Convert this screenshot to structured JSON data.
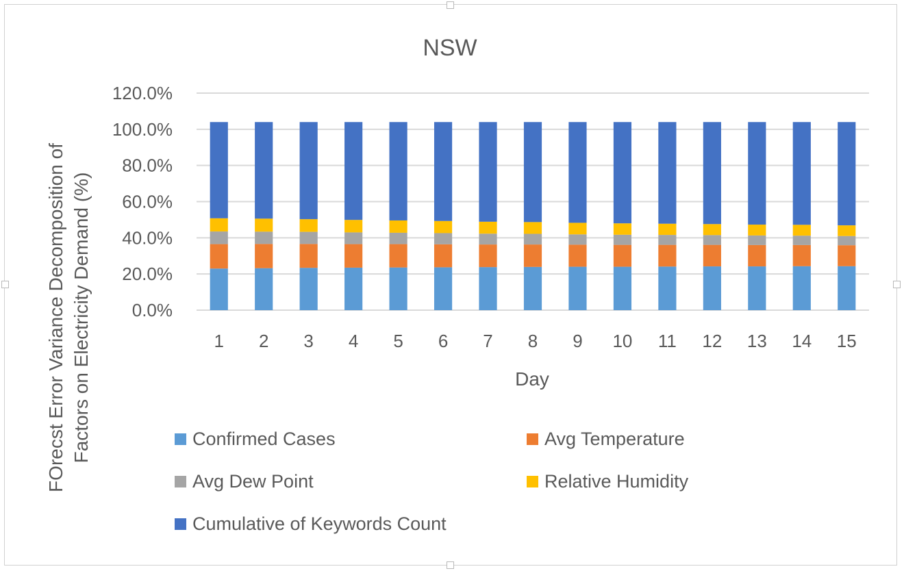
{
  "chart_data": {
    "type": "bar",
    "stacked": true,
    "title": "NSW",
    "xlabel": "Day",
    "ylabel": "FOrecst Error Variance Decomposition of Factors on Electricity Demand (%)",
    "ylabel_lines": [
      "FOrecst Error Variance Decomposition of",
      "Factors on Electricity Demand (%)"
    ],
    "ylim": [
      0,
      120
    ],
    "yticks": [
      "0.0%",
      "20.0%",
      "40.0%",
      "60.0%",
      "80.0%",
      "100.0%",
      "120.0%"
    ],
    "grid": true,
    "legend_position": "bottom",
    "categories": [
      "1",
      "2",
      "3",
      "4",
      "5",
      "6",
      "7",
      "8",
      "9",
      "10",
      "11",
      "12",
      "13",
      "14",
      "15"
    ],
    "series": [
      {
        "name": "Confirmed Cases",
        "color": "#5b9bd5",
        "values": [
          23.0,
          23.2,
          23.4,
          23.5,
          23.6,
          23.7,
          23.8,
          23.9,
          24.0,
          24.0,
          24.1,
          24.2,
          24.2,
          24.3,
          24.3
        ]
      },
      {
        "name": "Avg Temperature",
        "color": "#ed7d31",
        "values": [
          13.5,
          13.4,
          13.2,
          13.0,
          12.9,
          12.7,
          12.5,
          12.4,
          12.2,
          12.1,
          12.0,
          11.9,
          11.8,
          11.7,
          11.6
        ]
      },
      {
        "name": "Avg Dew Point",
        "color": "#a5a5a5",
        "values": [
          7.0,
          6.8,
          6.7,
          6.5,
          6.3,
          6.2,
          6.0,
          5.9,
          5.7,
          5.6,
          5.5,
          5.4,
          5.3,
          5.2,
          5.1
        ]
      },
      {
        "name": "Relative Humidity",
        "color": "#ffc000",
        "values": [
          7.3,
          7.2,
          7.0,
          6.9,
          6.8,
          6.7,
          6.6,
          6.5,
          6.4,
          6.3,
          6.2,
          6.1,
          6.0,
          6.0,
          5.9
        ]
      },
      {
        "name": "Cumulative of Keywords Count",
        "color": "#4472c4",
        "values": [
          53.2,
          53.4,
          53.7,
          54.1,
          54.4,
          54.7,
          55.1,
          55.3,
          55.7,
          56.0,
          56.2,
          56.4,
          56.7,
          56.8,
          57.1
        ]
      }
    ]
  }
}
